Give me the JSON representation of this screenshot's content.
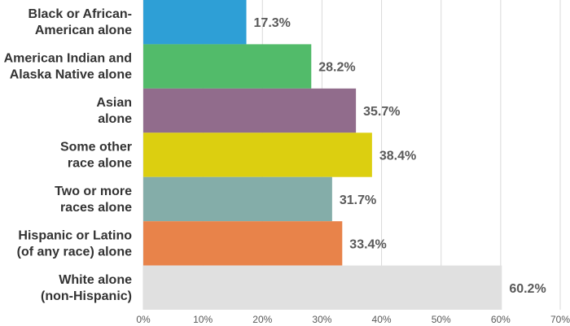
{
  "chart_data": {
    "type": "bar",
    "orientation": "horizontal",
    "categories": [
      [
        "Black or African-",
        "American alone"
      ],
      [
        "American Indian and",
        "Alaska Native alone"
      ],
      [
        "Asian",
        "alone"
      ],
      [
        "Some other",
        "race alone"
      ],
      [
        "Two or more",
        "races alone"
      ],
      [
        "Hispanic or Latino",
        "(of any race) alone"
      ],
      [
        "White alone",
        "(non-Hispanic)"
      ]
    ],
    "values": [
      17.3,
      28.2,
      35.7,
      38.4,
      31.7,
      33.4,
      60.2
    ],
    "value_labels": [
      "17.3%",
      "28.2%",
      "35.7%",
      "38.4%",
      "31.7%",
      "33.4%",
      "60.2%"
    ],
    "colors": [
      "#2e9fd6",
      "#52bb6a",
      "#916c8c",
      "#dccf10",
      "#84ada9",
      "#e8834a",
      "#e0e0e0"
    ],
    "xlim": [
      0,
      70
    ],
    "xticks": [
      0,
      10,
      20,
      30,
      40,
      50,
      60,
      70
    ],
    "xtick_labels": [
      "0%",
      "10%",
      "20%",
      "30%",
      "40%",
      "50%",
      "60%",
      "70%"
    ],
    "grid": "vertical",
    "gridline_color": "#d9d9d9",
    "title": "",
    "xlabel": "",
    "ylabel": ""
  }
}
